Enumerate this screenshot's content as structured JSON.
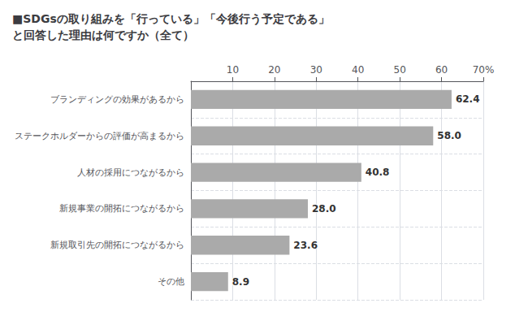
{
  "chart_data": {
    "type": "bar",
    "orientation": "horizontal",
    "title": "■SDGsの取り組みを「行っている」「今後行う予定である」\nと回答した理由は何ですか（全て）",
    "categories": [
      "ブランディングの効果があるから",
      "ステークホルダーからの評価が高まるから",
      "人材の採用につながるから",
      "新規事業の開拓につながるから",
      "新規取引先の開拓につながるから",
      "その他"
    ],
    "values": [
      62.4,
      58.0,
      40.8,
      28.0,
      23.6,
      8.9
    ],
    "value_labels": [
      "62.4",
      "58.0",
      "40.8",
      "28.0",
      "23.6",
      "8.9"
    ],
    "color": "#aaaaaa",
    "xlim": [
      0,
      70
    ],
    "xticks": [
      10,
      20,
      30,
      40,
      50,
      60,
      {
        "value": 70,
        "label": "70%"
      }
    ],
    "grid": true,
    "data_labels": true
  }
}
